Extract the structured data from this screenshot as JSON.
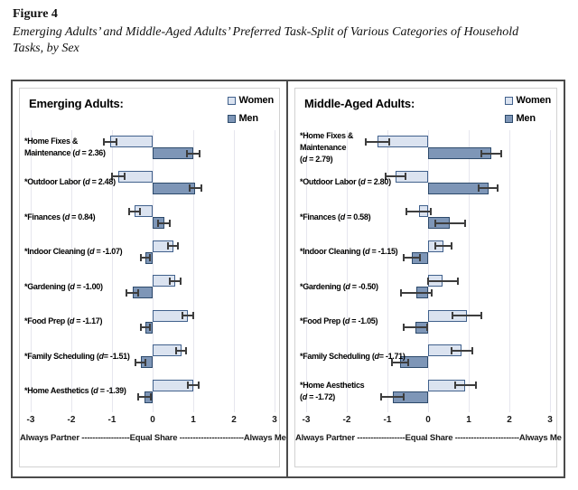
{
  "header": {
    "figure_label": "Figure 4",
    "title_lines": [
      "Emerging Adults’ and Middle-Aged Adults’ Preferred Task-Split of Various Categories of Household",
      "Tasks, by Sex"
    ]
  },
  "chart_data": [
    {
      "type": "bar",
      "orientation": "horizontal-diverging",
      "title": "Emerging Adults:",
      "legend": [
        {
          "label": "Women",
          "color": "#dbe3f0",
          "border": "#41618c"
        },
        {
          "label": "Men",
          "color": "#7e96b7",
          "border": "#2d4a6b"
        }
      ],
      "xlim": [
        -3,
        3
      ],
      "xticks": [
        -3,
        -2,
        -1,
        0,
        1,
        2,
        3
      ],
      "axis_caption": "Always Partner ------------------Equal Share ------------------------Always Me",
      "grid": true,
      "categories": [
        {
          "label_lines": [
            "*Home Fixes &",
            "Maintenance (d = 2.36)"
          ],
          "women": -1.05,
          "women_err": 0.15,
          "men": 1.0,
          "men_err": 0.15
        },
        {
          "label_lines": [
            "*Outdoor Labor (d = 2.48)"
          ],
          "women": -0.85,
          "women_err": 0.15,
          "men": 1.05,
          "men_err": 0.15
        },
        {
          "label_lines": [
            "*Finances (d = 0.84)"
          ],
          "women": -0.45,
          "women_err": 0.13,
          "men": 0.28,
          "men_err": 0.15
        },
        {
          "label_lines": [
            "*Indoor Cleaning (d = -1.07)"
          ],
          "women": 0.5,
          "women_err": 0.12,
          "men": -0.18,
          "men_err": 0.12
        },
        {
          "label_lines": [
            "*Gardening (d = -1.00)"
          ],
          "women": 0.55,
          "women_err": 0.13,
          "men": -0.5,
          "men_err": 0.15
        },
        {
          "label_lines": [
            "*Food Prep (d = -1.17)"
          ],
          "women": 0.87,
          "women_err": 0.13,
          "men": -0.18,
          "men_err": 0.12
        },
        {
          "label_lines": [
            "*Family Scheduling (d= -1.51)"
          ],
          "women": 0.7,
          "women_err": 0.12,
          "men": -0.3,
          "men_err": 0.12
        },
        {
          "label_lines": [
            "*Home Aesthetics (d = -1.39)"
          ],
          "women": 1.0,
          "women_err": 0.14,
          "men": -0.2,
          "men_err": 0.15
        }
      ]
    },
    {
      "type": "bar",
      "orientation": "horizontal-diverging",
      "title": "Middle-Aged Adults:",
      "legend": [
        {
          "label": "Women",
          "color": "#dbe3f0",
          "border": "#41618c"
        },
        {
          "label": "Men",
          "color": "#7e96b7",
          "border": "#2d4a6b"
        }
      ],
      "xlim": [
        -3,
        3
      ],
      "xticks": [
        -3,
        -2,
        -1,
        0,
        1,
        2,
        3
      ],
      "axis_caption": "Always Partner ------------------Equal Share ------------------------Always Me",
      "grid": true,
      "categories": [
        {
          "label_lines": [
            "*Home Fixes &",
            "Maintenance",
            "(d = 2.79)"
          ],
          "women": -1.25,
          "women_err": 0.29,
          "men": 1.55,
          "men_err": 0.25
        },
        {
          "label_lines": [
            "*Outdoor Labor (d = 2.80)"
          ],
          "women": -0.8,
          "women_err": 0.25,
          "men": 1.48,
          "men_err": 0.24
        },
        {
          "label_lines": [
            "*Finances (d = 0.58)"
          ],
          "women": -0.23,
          "women_err": 0.3,
          "men": 0.54,
          "men_err": 0.37
        },
        {
          "label_lines": [
            "*Indoor Cleaning (d = -1.15)"
          ],
          "women": 0.38,
          "women_err": 0.2,
          "men": -0.4,
          "men_err": 0.2
        },
        {
          "label_lines": [
            "*Gardening (d = -0.50)"
          ],
          "women": 0.36,
          "women_err": 0.37,
          "men": -0.29,
          "men_err": 0.38
        },
        {
          "label_lines": [
            "*Food Prep (d = -1.05)"
          ],
          "women": 0.96,
          "women_err": 0.35,
          "men": -0.31,
          "men_err": 0.28
        },
        {
          "label_lines": [
            "*Family Scheduling (d= -1.71)"
          ],
          "women": 0.83,
          "women_err": 0.25,
          "men": -0.68,
          "men_err": 0.2
        },
        {
          "label_lines": [
            "*Home Aesthetics",
            "(d = -1.72)"
          ],
          "women": 0.92,
          "women_err": 0.25,
          "men": -0.87,
          "men_err": 0.28
        }
      ]
    }
  ],
  "colors": {
    "women_fill": "#dbe3f0",
    "women_border": "#41618c",
    "men_fill": "#7e96b7",
    "men_border": "#2d4a6b",
    "gridline": "#e6e6ee",
    "error_bar": "#3d3d3d",
    "outer_border": "#4b4b4b",
    "inner_border": "#d2d2d2"
  }
}
